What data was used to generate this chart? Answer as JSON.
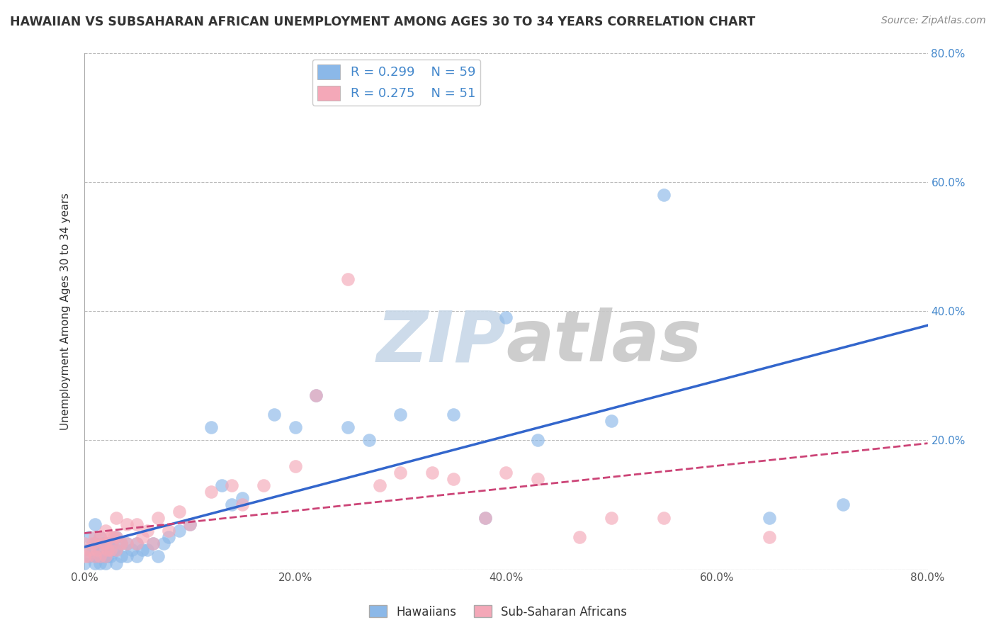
{
  "title": "HAWAIIAN VS SUBSAHARAN AFRICAN UNEMPLOYMENT AMONG AGES 30 TO 34 YEARS CORRELATION CHART",
  "source": "Source: ZipAtlas.com",
  "ylabel": "Unemployment Among Ages 30 to 34 years",
  "xlim": [
    0.0,
    0.8
  ],
  "ylim": [
    0.0,
    0.8
  ],
  "xticks": [
    0.0,
    0.2,
    0.4,
    0.6,
    0.8
  ],
  "yticks": [
    0.0,
    0.2,
    0.4,
    0.6,
    0.8
  ],
  "xtick_labels": [
    "0.0%",
    "20.0%",
    "40.0%",
    "60.0%",
    "80.0%"
  ],
  "ytick_labels_right": [
    "",
    "20.0%",
    "40.0%",
    "60.0%",
    "80.0%"
  ],
  "hawaiian_R": 0.299,
  "hawaiian_N": 59,
  "subsaharan_R": 0.275,
  "subsaharan_N": 51,
  "hawaiian_color": "#8BB8E8",
  "subsaharan_color": "#F4A8B8",
  "hawaiian_line_color": "#3366CC",
  "subsaharan_line_color": "#CC4477",
  "background_color": "#FFFFFF",
  "grid_color": "#BBBBBB",
  "watermark_color": "#DEDEDE",
  "legend_label_1": "Hawaiians",
  "legend_label_2": "Sub-Saharan Africans",
  "title_color": "#333333",
  "source_color": "#888888",
  "axis_label_color": "#4488CC",
  "hawaiian_x": [
    0.0,
    0.0,
    0.005,
    0.005,
    0.008,
    0.01,
    0.01,
    0.01,
    0.01,
    0.012,
    0.015,
    0.015,
    0.015,
    0.017,
    0.018,
    0.02,
    0.02,
    0.02,
    0.022,
    0.022,
    0.025,
    0.025,
    0.028,
    0.03,
    0.03,
    0.03,
    0.035,
    0.035,
    0.04,
    0.04,
    0.045,
    0.05,
    0.05,
    0.055,
    0.06,
    0.065,
    0.07,
    0.075,
    0.08,
    0.09,
    0.1,
    0.12,
    0.13,
    0.14,
    0.15,
    0.18,
    0.2,
    0.22,
    0.25,
    0.27,
    0.3,
    0.35,
    0.38,
    0.4,
    0.43,
    0.5,
    0.55,
    0.65,
    0.72
  ],
  "hawaiian_y": [
    0.01,
    0.03,
    0.02,
    0.05,
    0.03,
    0.01,
    0.02,
    0.04,
    0.07,
    0.02,
    0.01,
    0.03,
    0.05,
    0.02,
    0.04,
    0.01,
    0.02,
    0.04,
    0.02,
    0.04,
    0.02,
    0.04,
    0.03,
    0.01,
    0.03,
    0.05,
    0.02,
    0.04,
    0.02,
    0.04,
    0.03,
    0.02,
    0.04,
    0.03,
    0.03,
    0.04,
    0.02,
    0.04,
    0.05,
    0.06,
    0.07,
    0.22,
    0.13,
    0.1,
    0.11,
    0.24,
    0.22,
    0.27,
    0.22,
    0.2,
    0.24,
    0.24,
    0.08,
    0.39,
    0.2,
    0.23,
    0.58,
    0.08,
    0.1
  ],
  "subsaharan_x": [
    0.0,
    0.0,
    0.003,
    0.005,
    0.008,
    0.01,
    0.01,
    0.012,
    0.015,
    0.015,
    0.018,
    0.02,
    0.02,
    0.02,
    0.022,
    0.025,
    0.025,
    0.028,
    0.03,
    0.03,
    0.03,
    0.035,
    0.04,
    0.04,
    0.05,
    0.05,
    0.055,
    0.06,
    0.065,
    0.07,
    0.08,
    0.09,
    0.1,
    0.12,
    0.14,
    0.15,
    0.17,
    0.2,
    0.22,
    0.25,
    0.28,
    0.3,
    0.33,
    0.35,
    0.38,
    0.4,
    0.43,
    0.47,
    0.5,
    0.55,
    0.65
  ],
  "subsaharan_y": [
    0.02,
    0.04,
    0.02,
    0.03,
    0.04,
    0.02,
    0.05,
    0.03,
    0.02,
    0.05,
    0.04,
    0.02,
    0.04,
    0.06,
    0.03,
    0.03,
    0.05,
    0.05,
    0.03,
    0.05,
    0.08,
    0.04,
    0.04,
    0.07,
    0.04,
    0.07,
    0.05,
    0.06,
    0.04,
    0.08,
    0.06,
    0.09,
    0.07,
    0.12,
    0.13,
    0.1,
    0.13,
    0.16,
    0.27,
    0.45,
    0.13,
    0.15,
    0.15,
    0.14,
    0.08,
    0.15,
    0.14,
    0.05,
    0.08,
    0.08,
    0.05
  ]
}
